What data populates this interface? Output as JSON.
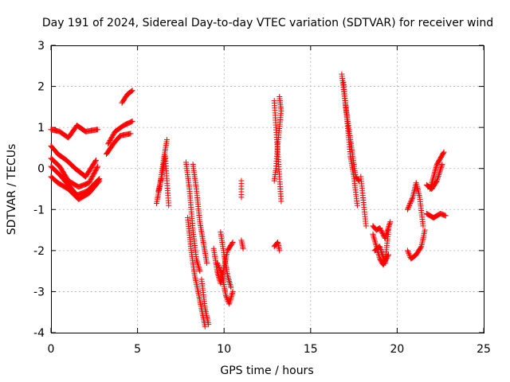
{
  "chart_data": {
    "type": "scatter",
    "title": "Day 191 of 2024, Sidereal Day-to-day VTEC variation (SDTVAR) for receiver wind",
    "xlabel": "GPS time / hours",
    "ylabel": "SDTVAR / TECUs",
    "xlim": [
      0,
      25
    ],
    "ylim": [
      -4,
      3
    ],
    "xticks": [
      0,
      5,
      10,
      15,
      20,
      25
    ],
    "yticks": [
      -4,
      -3,
      -2,
      -1,
      0,
      1,
      2,
      3
    ],
    "grid": true,
    "marker": "+",
    "color": "#ff0000",
    "segments": [
      [
        [
          0.0,
          0.95
        ],
        [
          0.5,
          0.9
        ],
        [
          1.0,
          0.75
        ],
        [
          1.5,
          1.05
        ],
        [
          2.0,
          0.9
        ],
        [
          2.7,
          0.95
        ]
      ],
      [
        [
          0.0,
          0.55
        ],
        [
          0.4,
          0.35
        ],
        [
          0.9,
          0.2
        ],
        [
          1.4,
          0.0
        ],
        [
          2.0,
          -0.2
        ],
        [
          2.6,
          0.2
        ]
      ],
      [
        [
          0.0,
          0.25
        ],
        [
          0.5,
          0.05
        ],
        [
          1.0,
          -0.3
        ],
        [
          1.6,
          -0.45
        ],
        [
          2.2,
          -0.35
        ],
        [
          2.7,
          0.05
        ]
      ],
      [
        [
          0.0,
          0.05
        ],
        [
          0.5,
          -0.15
        ],
        [
          1.0,
          -0.4
        ],
        [
          1.5,
          -0.65
        ],
        [
          2.1,
          -0.55
        ],
        [
          2.8,
          -0.25
        ]
      ],
      [
        [
          0.0,
          -0.2
        ],
        [
          0.4,
          -0.35
        ],
        [
          1.0,
          -0.5
        ],
        [
          1.6,
          -0.75
        ],
        [
          2.2,
          -0.6
        ],
        [
          2.8,
          -0.3
        ]
      ],
      [
        [
          3.2,
          0.35
        ],
        [
          3.6,
          0.6
        ],
        [
          4.0,
          0.8
        ],
        [
          4.6,
          0.85
        ]
      ],
      [
        [
          3.3,
          0.6
        ],
        [
          3.7,
          0.9
        ],
        [
          4.2,
          1.05
        ],
        [
          4.7,
          1.15
        ]
      ],
      [
        [
          4.1,
          1.6
        ],
        [
          4.4,
          1.8
        ],
        [
          4.7,
          1.9
        ]
      ],
      [
        [
          6.1,
          -0.85
        ],
        [
          6.3,
          -0.4
        ],
        [
          6.5,
          0.2
        ],
        [
          6.7,
          0.7
        ]
      ],
      [
        [
          6.2,
          -0.55
        ],
        [
          6.4,
          -0.2
        ],
        [
          6.6,
          0.3
        ],
        [
          6.8,
          -0.9
        ]
      ],
      [
        [
          7.8,
          0.15
        ],
        [
          8.0,
          -0.5
        ],
        [
          8.2,
          -1.5
        ],
        [
          8.4,
          -2.2
        ],
        [
          8.6,
          -2.5
        ]
      ],
      [
        [
          7.9,
          -1.2
        ],
        [
          8.1,
          -2.0
        ],
        [
          8.3,
          -2.6
        ],
        [
          8.5,
          -3.0
        ],
        [
          8.9,
          -3.85
        ]
      ],
      [
        [
          8.2,
          0.1
        ],
        [
          8.4,
          -0.5
        ],
        [
          8.6,
          -1.3
        ],
        [
          8.8,
          -1.8
        ],
        [
          9.0,
          -2.3
        ]
      ],
      [
        [
          8.7,
          -2.7
        ],
        [
          8.9,
          -3.4
        ],
        [
          9.1,
          -3.8
        ]
      ],
      [
        [
          9.4,
          -1.95
        ],
        [
          9.6,
          -2.5
        ],
        [
          9.8,
          -2.8
        ],
        [
          10.0,
          -2.4
        ],
        [
          10.2,
          -2.0
        ],
        [
          10.5,
          -1.8
        ]
      ],
      [
        [
          9.6,
          -2.3
        ],
        [
          9.9,
          -2.6
        ],
        [
          10.1,
          -3.1
        ],
        [
          10.3,
          -3.3
        ],
        [
          10.5,
          -3.0
        ]
      ],
      [
        [
          9.8,
          -1.55
        ],
        [
          10.0,
          -2.1
        ],
        [
          10.2,
          -2.6
        ],
        [
          10.4,
          -2.9
        ]
      ],
      [
        [
          11.0,
          -0.3
        ],
        [
          11.0,
          -0.7
        ]
      ],
      [
        [
          11.0,
          -1.75
        ],
        [
          11.1,
          -1.95
        ]
      ],
      [
        [
          12.9,
          1.65
        ],
        [
          13.0,
          1.0
        ],
        [
          13.1,
          0.4
        ],
        [
          13.2,
          -0.2
        ],
        [
          13.3,
          -0.8
        ]
      ],
      [
        [
          13.2,
          1.75
        ],
        [
          13.3,
          1.4
        ],
        [
          13.1,
          0.6
        ],
        [
          13.0,
          0.0
        ],
        [
          12.9,
          -0.3
        ]
      ],
      [
        [
          12.9,
          -1.9
        ],
        [
          13.1,
          -1.8
        ],
        [
          13.2,
          -2.0
        ]
      ],
      [
        [
          16.8,
          2.3
        ],
        [
          17.0,
          1.6
        ],
        [
          17.2,
          1.0
        ],
        [
          17.4,
          0.4
        ],
        [
          17.6,
          -0.2
        ],
        [
          17.8,
          -0.3
        ]
      ],
      [
        [
          16.9,
          2.1
        ],
        [
          17.1,
          1.2
        ],
        [
          17.3,
          0.3
        ],
        [
          17.5,
          -0.2
        ],
        [
          17.7,
          -0.9
        ]
      ],
      [
        [
          17.9,
          -0.2
        ],
        [
          18.0,
          -0.6
        ],
        [
          18.1,
          -1.0
        ],
        [
          18.2,
          -1.4
        ]
      ],
      [
        [
          18.6,
          -1.6
        ],
        [
          18.8,
          -1.9
        ],
        [
          19.0,
          -2.2
        ],
        [
          19.2,
          -2.35
        ],
        [
          19.5,
          -2.1
        ]
      ],
      [
        [
          18.6,
          -1.4
        ],
        [
          18.8,
          -1.5
        ],
        [
          19.0,
          -1.45
        ],
        [
          19.3,
          -1.7
        ],
        [
          19.6,
          -1.3
        ]
      ],
      [
        [
          18.7,
          -2.0
        ],
        [
          19.0,
          -1.9
        ],
        [
          19.3,
          -2.3
        ],
        [
          19.5,
          -1.5
        ]
      ],
      [
        [
          20.6,
          -1.0
        ],
        [
          20.9,
          -0.7
        ],
        [
          21.1,
          -0.35
        ],
        [
          21.3,
          -0.7
        ],
        [
          21.5,
          -1.4
        ]
      ],
      [
        [
          20.6,
          -2.0
        ],
        [
          20.8,
          -2.2
        ],
        [
          21.1,
          -2.1
        ],
        [
          21.4,
          -1.9
        ],
        [
          21.6,
          -1.5
        ]
      ],
      [
        [
          21.9,
          -0.5
        ],
        [
          22.1,
          -0.2
        ],
        [
          22.3,
          0.1
        ],
        [
          22.5,
          0.25
        ],
        [
          22.7,
          0.4
        ]
      ],
      [
        [
          21.7,
          -1.1
        ],
        [
          22.1,
          -1.2
        ],
        [
          22.5,
          -1.1
        ],
        [
          22.8,
          -1.15
        ]
      ],
      [
        [
          21.7,
          -0.4
        ],
        [
          22.0,
          -0.5
        ],
        [
          22.3,
          -0.3
        ],
        [
          22.6,
          0.1
        ]
      ]
    ]
  }
}
